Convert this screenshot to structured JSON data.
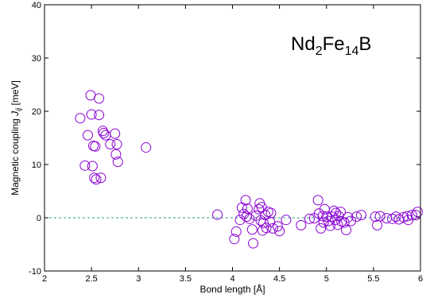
{
  "chart_data": {
    "type": "scatter",
    "title": "",
    "annotation": {
      "base": [
        "Nd",
        "Fe",
        "B"
      ],
      "subs": [
        "2",
        "14"
      ]
    },
    "xlabel": "Bond length [Å]",
    "ylabel": {
      "prefix": "Magnetic coupling ",
      "symbol": "J",
      "subscript": "ij",
      "suffix": " [meV]"
    },
    "xlim": [
      2,
      6
    ],
    "ylim": [
      -10,
      40
    ],
    "xticks": [
      2,
      2.5,
      3,
      3.5,
      4,
      4.5,
      5,
      5.5,
      6
    ],
    "xtick_labels": [
      "2",
      "2.5",
      "3",
      "3.5",
      "4",
      "4.5",
      "5",
      "5.5",
      "6"
    ],
    "yticks": [
      -10,
      0,
      10,
      20,
      30,
      40
    ],
    "ytick_labels": [
      "-10",
      "0",
      "10",
      "20",
      "30",
      "40"
    ],
    "reference_line": {
      "y": 0,
      "style": "dashed",
      "color": "#2a9d8f"
    },
    "marker": {
      "shape": "open-circle",
      "color": "#8a00d4"
    },
    "grid": false,
    "series": [
      {
        "points": [
          [
            2.38,
            18.7
          ],
          [
            2.46,
            15.5
          ],
          [
            2.43,
            9.8
          ],
          [
            2.49,
            23.0
          ],
          [
            2.5,
            19.4
          ],
          [
            2.51,
            9.7
          ],
          [
            2.52,
            13.5
          ],
          [
            2.53,
            7.5
          ],
          [
            2.54,
            13.4
          ],
          [
            2.55,
            7.2
          ],
          [
            2.58,
            19.3
          ],
          [
            2.58,
            22.4
          ],
          [
            2.6,
            7.5
          ],
          [
            2.62,
            16.3
          ],
          [
            2.63,
            15.9
          ],
          [
            2.65,
            15.5
          ],
          [
            2.7,
            13.8
          ],
          [
            2.75,
            15.8
          ],
          [
            2.76,
            11.9
          ],
          [
            2.77,
            13.8
          ],
          [
            2.78,
            10.5
          ],
          [
            3.08,
            13.2
          ],
          [
            3.84,
            0.6
          ],
          [
            4.02,
            -4.0
          ],
          [
            4.04,
            -2.6
          ],
          [
            4.08,
            -0.4
          ],
          [
            4.1,
            1.9
          ],
          [
            4.12,
            0.7
          ],
          [
            4.14,
            3.3
          ],
          [
            4.15,
            0.2
          ],
          [
            4.16,
            1.7
          ],
          [
            4.18,
            -0.2
          ],
          [
            4.21,
            -2.2
          ],
          [
            4.22,
            -4.8
          ],
          [
            4.25,
            0.4
          ],
          [
            4.28,
            1.6
          ],
          [
            4.29,
            2.7
          ],
          [
            4.3,
            -0.5
          ],
          [
            4.31,
            2.0
          ],
          [
            4.32,
            -2.4
          ],
          [
            4.33,
            -1.0
          ],
          [
            4.35,
            0.5
          ],
          [
            4.36,
            -1.9
          ],
          [
            4.38,
            1.1
          ],
          [
            4.4,
            -0.8
          ],
          [
            4.41,
            0.9
          ],
          [
            4.43,
            -2.0
          ],
          [
            4.48,
            -1.6
          ],
          [
            4.5,
            -2.5
          ],
          [
            4.57,
            -0.4
          ],
          [
            4.73,
            -1.4
          ],
          [
            4.82,
            -0.2
          ],
          [
            4.87,
            -0.1
          ],
          [
            4.91,
            3.3
          ],
          [
            4.92,
            0.8
          ],
          [
            4.94,
            -2.0
          ],
          [
            4.96,
            0.3
          ],
          [
            4.97,
            -0.9
          ],
          [
            4.98,
            1.6
          ],
          [
            5.0,
            0.2
          ],
          [
            5.02,
            -0.6
          ],
          [
            5.04,
            -1.5
          ],
          [
            5.06,
            0.2
          ],
          [
            5.08,
            1.3
          ],
          [
            5.09,
            -0.4
          ],
          [
            5.1,
            0.9
          ],
          [
            5.12,
            -1.3
          ],
          [
            5.13,
            0.3
          ],
          [
            5.15,
            1.1
          ],
          [
            5.16,
            -0.7
          ],
          [
            5.19,
            -0.9
          ],
          [
            5.21,
            -2.3
          ],
          [
            5.23,
            0.1
          ],
          [
            5.26,
            -0.6
          ],
          [
            5.32,
            0.2
          ],
          [
            5.37,
            0.5
          ],
          [
            5.52,
            0.2
          ],
          [
            5.54,
            -1.4
          ],
          [
            5.57,
            0.3
          ],
          [
            5.64,
            -0.1
          ],
          [
            5.7,
            -0.2
          ],
          [
            5.74,
            0.2
          ],
          [
            5.77,
            -0.3
          ],
          [
            5.82,
            0.1
          ],
          [
            5.86,
            0.3
          ],
          [
            5.87,
            -0.4
          ],
          [
            5.91,
            0.5
          ],
          [
            5.95,
            0.5
          ],
          [
            5.97,
            1.1
          ]
        ]
      }
    ]
  }
}
